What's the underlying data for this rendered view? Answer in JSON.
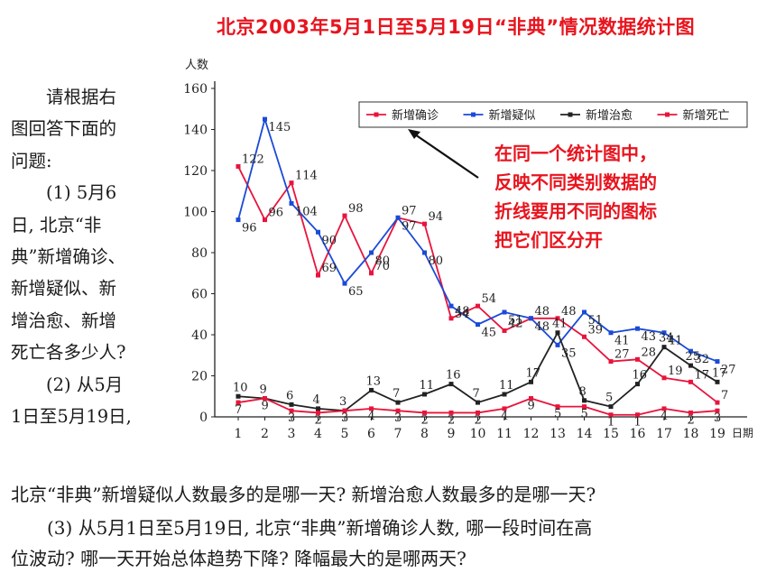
{
  "title": "北京2003年5月1日至5月19日“非典”情况数据统计图",
  "annotation": [
    "在同一个统计图中，",
    "反映不同类别数据的",
    "折线要用不同的图标",
    "把它们区分开"
  ],
  "left_text": {
    "intro": [
      "请根据右",
      "图回答下面的",
      "问题:"
    ],
    "q1": [
      "(1) 5月6",
      "日, 北京“非",
      "典”新增确诊、",
      "新增疑似、新",
      "增治愈、新增",
      "死亡各多少人?"
    ],
    "q2_head": [
      "(2) 从5月",
      "1日至5月19日,"
    ]
  },
  "q2_tail": "北京“非典”新增疑似人数最多的是哪一天? 新增治愈人数最多的是哪一天?",
  "q3": [
    "(3) 从5月1日至5月19日, 北京“非典”新增确诊人数, 哪一段时间在高",
    "位波动? 哪一天开始总体趋势下降? 降幅最大的是哪两天?"
  ],
  "chart_data": {
    "type": "line",
    "ylabel": "人数",
    "xlabel": "日期",
    "x": [
      1,
      2,
      3,
      4,
      5,
      6,
      7,
      8,
      9,
      10,
      11,
      12,
      13,
      14,
      15,
      16,
      17,
      18,
      19
    ],
    "yticks": [
      0,
      20,
      40,
      60,
      80,
      100,
      120,
      140,
      160
    ],
    "ylim": [
      0,
      160
    ],
    "legend_position": "top-right",
    "series": [
      {
        "name": "新增确诊",
        "color": "#e8143c",
        "values": [
          122,
          96,
          114,
          69,
          98,
          70,
          97,
          94,
          48,
          54,
          42,
          48,
          48,
          39,
          27,
          28,
          19,
          17,
          7
        ]
      },
      {
        "name": "新增疑似",
        "color": "#1a4ad8",
        "values": [
          96,
          145,
          104,
          90,
          65,
          80,
          97,
          80,
          54,
          45,
          51,
          48,
          35,
          51,
          41,
          43,
          41,
          32,
          27
        ]
      },
      {
        "name": "新增治愈",
        "color": "#222222",
        "values": [
          10,
          9,
          6,
          4,
          3,
          13,
          7,
          11,
          16,
          7,
          11,
          17,
          41,
          8,
          5,
          16,
          34,
          25,
          17
        ]
      },
      {
        "name": "新增死亡",
        "color": "#e8143c",
        "values": [
          7,
          9,
          3,
          2,
          3,
          4,
          3,
          2,
          2,
          2,
          4,
          9,
          5,
          5,
          1,
          1,
          4,
          2,
          3
        ]
      }
    ]
  }
}
